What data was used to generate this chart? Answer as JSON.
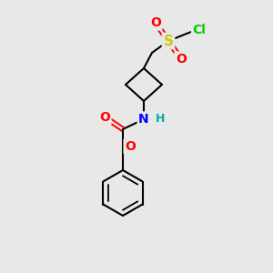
{
  "background_color": "#e8e8e8",
  "bond_color": "#000000",
  "atom_colors": {
    "O": "#ff0000",
    "N": "#0000ff",
    "S": "#cccc00",
    "Cl": "#00cc00",
    "H": "#00aaaa",
    "C": "#000000"
  },
  "figsize": [
    3.0,
    3.0
  ],
  "dpi": 100
}
